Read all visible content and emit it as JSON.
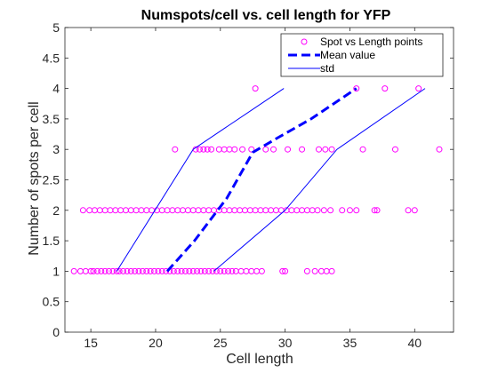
{
  "chart_data": {
    "type": "scatter",
    "title": "Numspots/cell vs. cell length for YFP",
    "xlabel": "Cell length",
    "ylabel": "Number of spots per cell",
    "xlim": [
      13,
      43
    ],
    "ylim": [
      0,
      5
    ],
    "xticks": [
      "15",
      "20",
      "25",
      "30",
      "35",
      "40"
    ],
    "yticks": [
      "0",
      "0.5",
      "1",
      "1.5",
      "2",
      "2.5",
      "3",
      "3.5",
      "4",
      "4.5",
      "5"
    ],
    "grid": false,
    "legend_placement": "top-right",
    "series": [
      {
        "name": "Spot vs Length points",
        "kind": "scatter",
        "color": "#ff00ff",
        "points": [
          [
            13.7,
            1
          ],
          [
            14.2,
            1
          ],
          [
            14.6,
            1
          ],
          [
            15.0,
            1
          ],
          [
            15.2,
            1
          ],
          [
            15.5,
            1
          ],
          [
            15.8,
            1
          ],
          [
            16.1,
            1
          ],
          [
            16.4,
            1
          ],
          [
            16.7,
            1
          ],
          [
            17.0,
            1
          ],
          [
            17.2,
            1
          ],
          [
            17.5,
            1
          ],
          [
            17.8,
            1
          ],
          [
            18.1,
            1
          ],
          [
            18.4,
            1
          ],
          [
            18.7,
            1
          ],
          [
            19.0,
            1
          ],
          [
            19.3,
            1
          ],
          [
            19.6,
            1
          ],
          [
            19.9,
            1
          ],
          [
            20.2,
            1
          ],
          [
            20.5,
            1
          ],
          [
            20.8,
            1
          ],
          [
            21.1,
            1
          ],
          [
            21.4,
            1
          ],
          [
            21.7,
            1
          ],
          [
            22.0,
            1
          ],
          [
            22.3,
            1
          ],
          [
            22.6,
            1
          ],
          [
            22.9,
            1
          ],
          [
            23.2,
            1
          ],
          [
            23.5,
            1
          ],
          [
            23.8,
            1
          ],
          [
            24.1,
            1
          ],
          [
            24.4,
            1
          ],
          [
            24.7,
            1
          ],
          [
            25.0,
            1
          ],
          [
            25.3,
            1
          ],
          [
            25.6,
            1
          ],
          [
            25.9,
            1
          ],
          [
            26.2,
            1
          ],
          [
            26.6,
            1
          ],
          [
            27.0,
            1
          ],
          [
            27.4,
            1
          ],
          [
            27.8,
            1
          ],
          [
            28.2,
            1
          ],
          [
            29.8,
            1
          ],
          [
            30.0,
            1
          ],
          [
            31.7,
            1
          ],
          [
            32.3,
            1
          ],
          [
            32.8,
            1
          ],
          [
            33.2,
            1
          ],
          [
            33.6,
            1
          ],
          [
            14.4,
            2
          ],
          [
            14.9,
            2
          ],
          [
            15.3,
            2
          ],
          [
            15.7,
            2
          ],
          [
            16.1,
            2
          ],
          [
            16.5,
            2
          ],
          [
            16.9,
            2
          ],
          [
            17.3,
            2
          ],
          [
            17.7,
            2
          ],
          [
            18.1,
            2
          ],
          [
            18.5,
            2
          ],
          [
            18.9,
            2
          ],
          [
            19.3,
            2
          ],
          [
            19.7,
            2
          ],
          [
            20.1,
            2
          ],
          [
            20.5,
            2
          ],
          [
            20.9,
            2
          ],
          [
            21.3,
            2
          ],
          [
            21.7,
            2
          ],
          [
            22.1,
            2
          ],
          [
            22.5,
            2
          ],
          [
            22.9,
            2
          ],
          [
            23.3,
            2
          ],
          [
            23.7,
            2
          ],
          [
            24.1,
            2
          ],
          [
            24.5,
            2
          ],
          [
            24.9,
            2
          ],
          [
            25.3,
            2
          ],
          [
            25.7,
            2
          ],
          [
            26.1,
            2
          ],
          [
            26.5,
            2
          ],
          [
            26.9,
            2
          ],
          [
            27.3,
            2
          ],
          [
            27.7,
            2
          ],
          [
            28.1,
            2
          ],
          [
            28.5,
            2
          ],
          [
            28.9,
            2
          ],
          [
            29.3,
            2
          ],
          [
            29.7,
            2
          ],
          [
            30.1,
            2
          ],
          [
            30.5,
            2
          ],
          [
            30.9,
            2
          ],
          [
            31.3,
            2
          ],
          [
            31.7,
            2
          ],
          [
            32.1,
            2
          ],
          [
            32.5,
            2
          ],
          [
            33.0,
            2
          ],
          [
            33.5,
            2
          ],
          [
            34.4,
            2
          ],
          [
            35.0,
            2
          ],
          [
            35.5,
            2
          ],
          [
            36.9,
            2
          ],
          [
            37.1,
            2
          ],
          [
            39.5,
            2
          ],
          [
            40.0,
            2
          ],
          [
            21.5,
            3
          ],
          [
            23.1,
            3
          ],
          [
            23.4,
            3
          ],
          [
            23.7,
            3
          ],
          [
            24.0,
            3
          ],
          [
            24.3,
            3
          ],
          [
            24.9,
            3
          ],
          [
            25.3,
            3
          ],
          [
            25.7,
            3
          ],
          [
            26.1,
            3
          ],
          [
            26.7,
            3
          ],
          [
            27.4,
            3
          ],
          [
            28.5,
            3
          ],
          [
            29.1,
            3
          ],
          [
            30.2,
            3
          ],
          [
            31.3,
            3
          ],
          [
            32.6,
            3
          ],
          [
            33.1,
            3
          ],
          [
            33.6,
            3
          ],
          [
            36.0,
            3
          ],
          [
            38.5,
            3
          ],
          [
            41.9,
            3
          ],
          [
            27.7,
            4
          ],
          [
            35.5,
            4
          ],
          [
            37.7,
            4
          ],
          [
            40.3,
            4
          ]
        ]
      },
      {
        "name": "Mean value",
        "kind": "line",
        "dash": true,
        "color": "#0000ff",
        "points": [
          [
            20.9,
            1
          ],
          [
            23.0,
            1.5
          ],
          [
            25.5,
            2.2
          ],
          [
            27.5,
            2.95
          ],
          [
            29.5,
            3.2
          ],
          [
            32.0,
            3.5
          ],
          [
            35.5,
            4
          ]
        ]
      },
      {
        "name": "std",
        "kind": "line",
        "color": "#0000ff",
        "segments": [
          [
            [
              17.0,
              1
            ],
            [
              22.9,
              3
            ],
            [
              29.9,
              4
            ]
          ],
          [
            [
              24.5,
              1
            ],
            [
              30.0,
              2
            ],
            [
              34.0,
              3
            ],
            [
              40.8,
              4
            ]
          ]
        ]
      }
    ]
  }
}
